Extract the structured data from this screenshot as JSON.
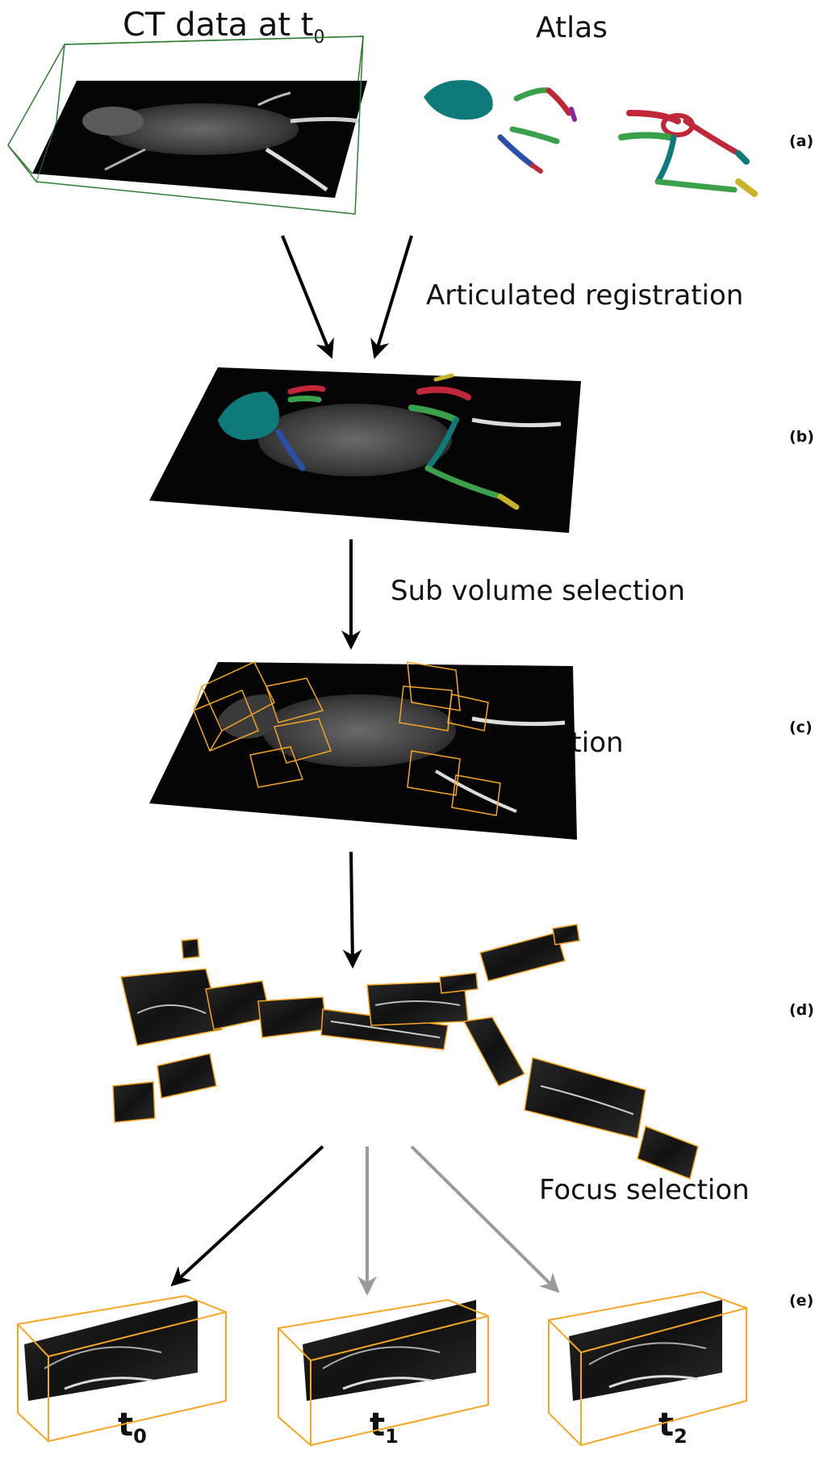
{
  "header": {
    "ct_prefix": "CT data at t",
    "ct_sub": "0",
    "atlas": "Atlas"
  },
  "steps": {
    "registration": "Articulated registration",
    "subvolume": "Sub volume selection",
    "apr": "APR visualization",
    "focus": "Focus selection"
  },
  "panels": {
    "a": "(a)",
    "b": "(b)",
    "c": "(c)",
    "d": "(d)",
    "e": "(e)"
  },
  "timepoints": [
    {
      "base": "t",
      "sub": "0"
    },
    {
      "base": "t",
      "sub": "1"
    },
    {
      "base": "t",
      "sub": "2"
    }
  ],
  "colors": {
    "arrow_primary": "#000000",
    "arrow_secondary": "#9a9a9a",
    "box_outline": "#f5a623",
    "ct_box": "#2e7d32",
    "bone_teal": "#0e7a7a",
    "bone_green": "#3aa04a",
    "bone_red": "#c0283a",
    "bone_blue": "#2a4fa8",
    "bone_yellow": "#c9b428",
    "bone_magenta": "#8a2a9a"
  }
}
